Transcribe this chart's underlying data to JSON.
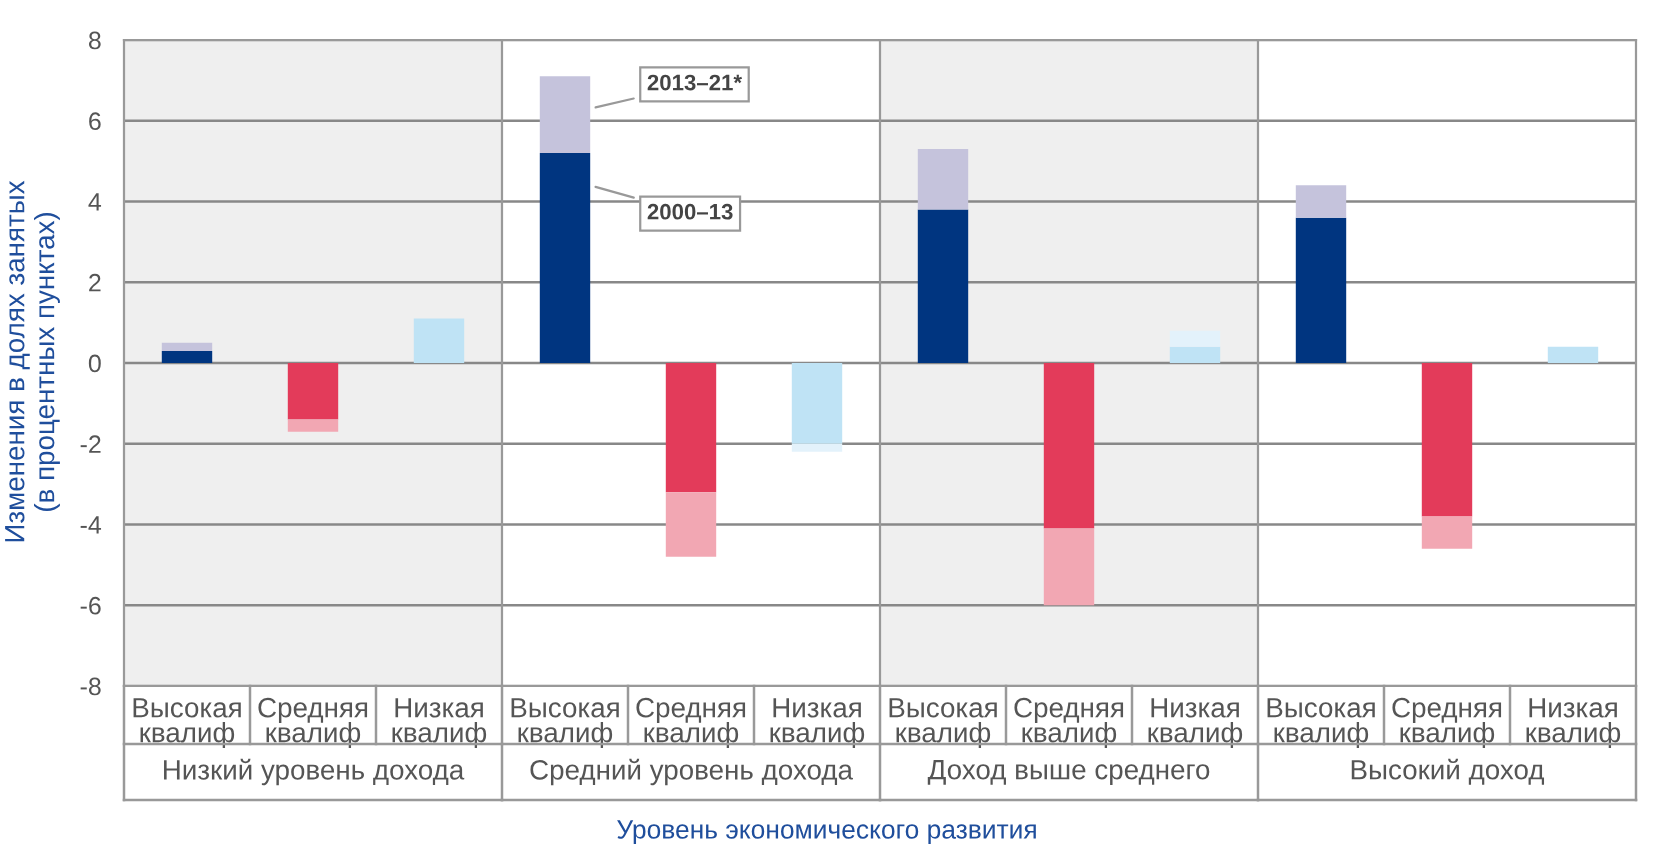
{
  "chart_data": [
    {
      "type": "bar",
      "stacked": true,
      "xlabel": "Низкий уровень дохода",
      "ylabel": "Изменения в долях занятых\n(в процентных пунктах)",
      "categories": [
        "Высокая\nквалиф",
        "Средняя\nквалиф",
        "Низкая\nквалиф"
      ],
      "ylim": [
        -8,
        8
      ],
      "yticks": [
        -8,
        -6,
        -4,
        -2,
        0,
        2,
        4,
        6,
        8
      ],
      "grid": "y",
      "annotations": [
        "Уровень экономического развития"
      ],
      "series": [
        {
          "colors": [
            "#003580",
            "#e33b5a",
            "#bfe3f5"
          ],
          "values": [
            0.3,
            -1.4,
            1.1
          ]
        },
        {
          "colors": [
            "#c5c3dc",
            "#f2a7b3",
            "#e3f2fb"
          ],
          "values": [
            0.2,
            -0.3,
            null
          ]
        }
      ]
    },
    {
      "type": "bar",
      "stacked": true,
      "xlabel": "Средний уровень дохода",
      "categories": [
        "Высокая\nквалиф",
        "Средняя\nквалиф",
        "Низкая\nквалиф"
      ],
      "ylim": [
        -8,
        8
      ],
      "yticks": [
        -8,
        -6,
        -4,
        -2,
        0,
        2,
        4,
        6,
        8
      ],
      "grid": "y",
      "tick_labels": "x",
      "series": [
        {
          "name": "2000–13",
          "colors": [
            "#003580",
            "#e33b5a",
            "#bfe3f5"
          ],
          "values": [
            5.2,
            -3.2,
            -2.0
          ]
        },
        {
          "name": "2013–21*",
          "colors": [
            "#c5c3dc",
            "#f2a7b3",
            "#e3f2fb"
          ],
          "values": [
            1.9,
            -1.6,
            -0.2
          ]
        }
      ]
    },
    {
      "type": "bar",
      "stacked": true,
      "xlabel": "Доход выше среднего",
      "categories": [
        "Высокая\nквалиф",
        "Средняя\nквалиф",
        "Низкая\nквалиф"
      ],
      "ylim": [
        -8,
        8
      ],
      "yticks": [
        -8,
        -6,
        -4,
        -2,
        0,
        2,
        4,
        6,
        8
      ],
      "grid": "y",
      "tick_labels": "x",
      "series": [
        {
          "colors": [
            "#003580",
            "#e33b5a",
            "#bfe3f5"
          ],
          "values": [
            3.8,
            -4.1,
            0.4
          ]
        },
        {
          "colors": [
            "#c5c3dc",
            "#f2a7b3",
            "#e3f2fb"
          ],
          "values": [
            1.5,
            -1.9,
            0.4
          ]
        }
      ]
    },
    {
      "type": "bar",
      "stacked": true,
      "xlabel": "Высокий доход",
      "categories": [
        "Высокая\nквалиф",
        "Средняя\nквалиф",
        "Низкая\nквалиф"
      ],
      "ylim": [
        -8,
        8
      ],
      "yticks": [
        -8,
        -6,
        -4,
        -2,
        0,
        2,
        4,
        6,
        8
      ],
      "grid": "y",
      "tick_labels": "x",
      "series": [
        {
          "colors": [
            "#003580",
            "#e33b5a",
            "#bfe3f5"
          ],
          "values": [
            3.6,
            -3.8,
            0.4
          ]
        },
        {
          "colors": [
            "#c5c3dc",
            "#f2a7b3",
            "#e3f2fb"
          ],
          "values": [
            0.8,
            -0.8,
            null
          ]
        }
      ]
    }
  ]
}
